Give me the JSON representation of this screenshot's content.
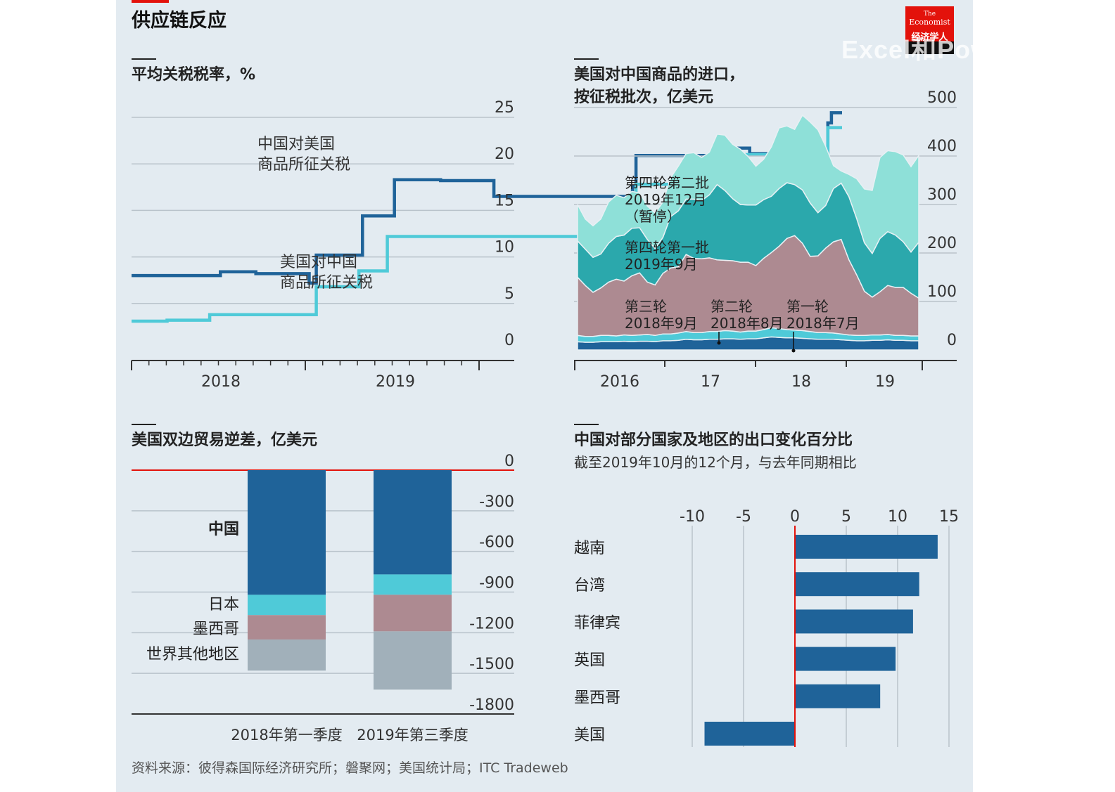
{
  "page": {
    "title": "供应链反应",
    "source": "资料来源：彼得森国际经济研究所；磐聚网；美国统计局；ITC Tradeweb",
    "logo": {
      "line1": "The",
      "line2": "Economist",
      "line3": "经济学人"
    },
    "watermark": "Excel和PowerBI实战"
  },
  "colors": {
    "panel_bg": "#e3ebf1",
    "dark_blue": "#1f6399",
    "light_teal": "#4fcad8",
    "mid_teal": "#2ba8ac",
    "pale_teal": "#8ee0d8",
    "mauve": "#ad8a91",
    "grey": "#a1b0ba",
    "red": "#e3120b"
  },
  "chart_data": [
    {
      "id": "tariffs",
      "type": "line",
      "title": "平均关税税率，%",
      "x_tick_labels": [
        "2018",
        "2019"
      ],
      "ylim": [
        0,
        25
      ],
      "y_ticks": [
        0,
        5,
        10,
        15,
        20,
        25
      ],
      "series": [
        {
          "name": "中国对美国\n商品所征关税",
          "color": "#1f6399",
          "points": [
            [
              2017.0,
              8.0
            ],
            [
              2017.25,
              8.0
            ],
            [
              2017.25,
              8.4
            ],
            [
              2017.35,
              8.4
            ],
            [
              2017.35,
              8.2
            ],
            [
              2017.5,
              8.2
            ],
            [
              2017.5,
              7.2
            ],
            [
              2017.52,
              7.2
            ],
            [
              2017.52,
              10.2
            ],
            [
              2017.65,
              10.2
            ],
            [
              2017.65,
              14.4
            ],
            [
              2017.74,
              14.4
            ],
            [
              2017.74,
              18.3
            ],
            [
              2017.87,
              18.3
            ],
            [
              2017.87,
              18.2
            ],
            [
              2018.02,
              18.2
            ],
            [
              2018.02,
              16.5
            ],
            [
              2018.41,
              16.5
            ],
            [
              2018.41,
              17.6
            ],
            [
              2018.42,
              17.6
            ],
            [
              2018.42,
              20.9
            ],
            [
              2018.68,
              20.9
            ],
            [
              2018.68,
              21.7
            ],
            [
              2018.74,
              21.7
            ],
            [
              2018.74,
              21.1
            ],
            [
              2018.96,
              21.1
            ],
            [
              2018.96,
              24.4
            ],
            [
              2018.97,
              24.4
            ],
            [
              2018.97,
              25.5
            ],
            [
              2019.0,
              25.5
            ]
          ]
        },
        {
          "name": "美国对中国\n商品所征关税",
          "color": "#4fcad8",
          "points": [
            [
              2017.0,
              3.1
            ],
            [
              2017.1,
              3.1
            ],
            [
              2017.1,
              3.2
            ],
            [
              2017.22,
              3.2
            ],
            [
              2017.22,
              3.8
            ],
            [
              2017.52,
              3.8
            ],
            [
              2017.52,
              6.8
            ],
            [
              2017.64,
              6.8
            ],
            [
              2017.64,
              8.5
            ],
            [
              2017.72,
              8.5
            ],
            [
              2017.72,
              12.2
            ],
            [
              2018.42,
              12.2
            ],
            [
              2018.42,
              17.8
            ],
            [
              2018.67,
              17.8
            ],
            [
              2018.67,
              21.0
            ],
            [
              2018.96,
              21.0
            ],
            [
              2018.96,
              23.9
            ],
            [
              2019.0,
              23.9
            ]
          ]
        }
      ]
    },
    {
      "id": "imports",
      "type": "area",
      "title": "美国对中国商品的进口，\n按征税批次，亿美元",
      "x_tick_labels": [
        "2016",
        "17",
        "18",
        "19"
      ],
      "ylim": [
        0,
        500
      ],
      "y_ticks": [
        0,
        100,
        200,
        300,
        400,
        500
      ],
      "x_months": 45,
      "series": [
        {
          "name": "第一轮\n2018年7月",
          "color": "#1f6399",
          "values": [
            17,
            16,
            16,
            17,
            17,
            17,
            18,
            17,
            18,
            18,
            17,
            19,
            19,
            20,
            22,
            21,
            21,
            22,
            22,
            23,
            23,
            22,
            23,
            23,
            25,
            27,
            26,
            25,
            25,
            24,
            23,
            22,
            22,
            22,
            21,
            20,
            19,
            19,
            20,
            20,
            21,
            20,
            20,
            19,
            19
          ]
        },
        {
          "name": "第二轮\n2018年8月",
          "color": "#4fcad8",
          "values": [
            13,
            12,
            12,
            13,
            13,
            12,
            13,
            13,
            13,
            14,
            13,
            14,
            14,
            15,
            16,
            15,
            15,
            16,
            16,
            17,
            16,
            15,
            16,
            16,
            17,
            19,
            18,
            17,
            16,
            16,
            15,
            14,
            14,
            13,
            12,
            11,
            11,
            11,
            11,
            11,
            11,
            10,
            10,
            10,
            10
          ]
        },
        {
          "name": "第三轮\n2018年9月",
          "color": "#ad8a91",
          "values": [
            120,
            105,
            91,
            98,
            110,
            117,
            111,
            123,
            128,
            108,
            104,
            125,
            136,
            137,
            159,
            153,
            152,
            152,
            148,
            145,
            145,
            144,
            142,
            135,
            147,
            155,
            170,
            188,
            195,
            180,
            155,
            158,
            174,
            188,
            195,
            155,
            125,
            91,
            78,
            89,
            101,
            99,
            99,
            88,
            78
          ]
        },
        {
          "name": "第四轮第一批\n2019年9月",
          "color": "#2ba8ac",
          "values": [
            75,
            75,
            72,
            70,
            80,
            88,
            95,
            98,
            93,
            88,
            75,
            74,
            106,
            115,
            114,
            122,
            120,
            130,
            155,
            144,
            128,
            119,
            118,
            125,
            121,
            116,
            119,
            115,
            105,
            110,
            110,
            89,
            88,
            110,
            116,
            130,
            116,
            100,
            90,
            110,
            111,
            108,
            94,
            85,
            115
          ]
        },
        {
          "name": "第四轮第二批\n2019年12月\n（暂停）",
          "color": "#8ee0d8",
          "values": [
            75,
            62,
            65,
            72,
            85,
            85,
            77,
            76,
            72,
            69,
            73,
            73,
            80,
            92,
            94,
            96,
            89,
            88,
            104,
            114,
            112,
            114,
            100,
            80,
            83,
            102,
            125,
            117,
            114,
            154,
            167,
            171,
            122,
            47,
            25,
            46,
            82,
            111,
            130,
            167,
            167,
            172,
            179,
            176,
            179
          ]
        }
      ]
    },
    {
      "id": "deficit",
      "type": "bar",
      "title": "美国双边贸易逆差，亿美元",
      "categories": [
        "2018年第一季度",
        "2019年第三季度"
      ],
      "ylim": [
        -1800,
        0
      ],
      "y_ticks": [
        0,
        -300,
        -600,
        -900,
        -1200,
        -1500,
        -1800
      ],
      "series": [
        {
          "name": "中国",
          "color": "#1f6399",
          "values": [
            -920,
            -770
          ]
        },
        {
          "name": "日本",
          "color": "#4fcad8",
          "values": [
            -150,
            -150
          ]
        },
        {
          "name": "墨西哥",
          "color": "#ad8a91",
          "values": [
            -180,
            -270
          ]
        },
        {
          "name": "世界其他地区",
          "color": "#a1b0ba",
          "values": [
            -230,
            -430
          ]
        }
      ]
    },
    {
      "id": "exports",
      "type": "bar",
      "orientation": "horizontal",
      "title": "中国对部分国家及地区的出口变化百分比",
      "subtitle": "截至2019年10月的12个月，与去年同期相比",
      "categories": [
        "越南",
        "台湾",
        "菲律宾",
        "英国",
        "墨西哥",
        "美国"
      ],
      "values": [
        13.9,
        12.1,
        11.5,
        9.8,
        8.3,
        -8.8
      ],
      "xlim": [
        -10,
        15
      ],
      "x_ticks": [
        -10,
        -5,
        0,
        5,
        10,
        15
      ],
      "color": "#1f6399"
    }
  ]
}
